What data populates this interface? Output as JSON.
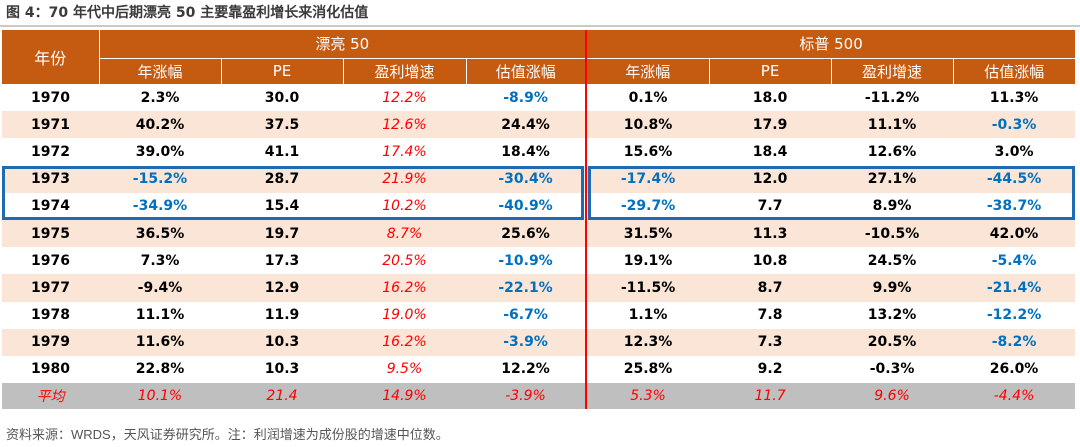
{
  "title": "图 4：70 年代中后期漂亮 50 主要靠盈利增长来消化估值",
  "source": "资料来源：WRDS，天风证券研究所。注：利润增速为成份股的增速中位数。",
  "header": {
    "year": "年份",
    "group_left": "漂亮 50",
    "group_right": "标普 500",
    "columns": [
      "年涨幅",
      "PE",
      "盈利增速",
      "估值涨幅",
      "年涨幅",
      "PE",
      "盈利增速",
      "估值涨幅"
    ]
  },
  "colors": {
    "header_bg": "#c55a11",
    "stripe": "#fbe5d6",
    "negative": "#0070c0",
    "earnings": "#ff0000",
    "highlight_box": "#1f6bb3",
    "average_bg": "#bfbfbf"
  },
  "rows": [
    {
      "year": "1970",
      "cells": [
        "2.3%",
        "30.0",
        "12.2%",
        "-8.9%",
        "0.1%",
        "18.0",
        "-11.2%",
        "11.3%"
      ]
    },
    {
      "year": "1971",
      "cells": [
        "40.2%",
        "37.5",
        "12.6%",
        "24.4%",
        "10.8%",
        "17.9",
        "11.1%",
        "-0.3%"
      ]
    },
    {
      "year": "1972",
      "cells": [
        "39.0%",
        "41.1",
        "17.4%",
        "18.4%",
        "15.6%",
        "18.4",
        "12.6%",
        "3.0%"
      ]
    },
    {
      "year": "1973",
      "cells": [
        "-15.2%",
        "28.7",
        "21.9%",
        "-30.4%",
        "-17.4%",
        "12.0",
        "27.1%",
        "-44.5%"
      ]
    },
    {
      "year": "1974",
      "cells": [
        "-34.9%",
        "15.4",
        "10.2%",
        "-40.9%",
        "-29.7%",
        "7.7",
        "8.9%",
        "-38.7%"
      ]
    },
    {
      "year": "1975",
      "cells": [
        "36.5%",
        "19.7",
        "8.7%",
        "25.6%",
        "31.5%",
        "11.3",
        "-10.5%",
        "42.0%"
      ]
    },
    {
      "year": "1976",
      "cells": [
        "7.3%",
        "17.3",
        "20.5%",
        "-10.9%",
        "19.1%",
        "10.8",
        "24.5%",
        "-5.4%"
      ]
    },
    {
      "year": "1977",
      "cells": [
        "-9.4%",
        "12.9",
        "16.2%",
        "-22.1%",
        "-11.5%",
        "8.7",
        "9.9%",
        "-21.4%"
      ]
    },
    {
      "year": "1978",
      "cells": [
        "11.1%",
        "11.9",
        "19.0%",
        "-6.7%",
        "1.1%",
        "7.8",
        "13.2%",
        "-12.2%"
      ]
    },
    {
      "year": "1979",
      "cells": [
        "11.6%",
        "10.3",
        "16.2%",
        "-3.9%",
        "12.3%",
        "7.3",
        "20.5%",
        "-8.2%"
      ]
    },
    {
      "year": "1980",
      "cells": [
        "22.8%",
        "10.3",
        "9.5%",
        "12.2%",
        "25.8%",
        "9.2",
        "-0.3%",
        "26.0%"
      ]
    }
  ],
  "average": {
    "year": "平均",
    "cells": [
      "10.1%",
      "21.4",
      "14.9%",
      "-3.9%",
      "5.3%",
      "11.7",
      "9.6%",
      "-4.4%"
    ]
  },
  "blue_cells": [
    [
      3,
      0
    ],
    [
      3,
      3
    ],
    [
      3,
      4
    ],
    [
      3,
      7
    ],
    [
      4,
      0
    ],
    [
      4,
      3
    ],
    [
      4,
      4
    ],
    [
      4,
      7
    ],
    [
      0,
      3
    ],
    [
      1,
      7
    ],
    [
      6,
      3
    ],
    [
      6,
      7
    ],
    [
      7,
      3
    ],
    [
      7,
      7
    ],
    [
      8,
      3
    ],
    [
      8,
      7
    ],
    [
      9,
      3
    ],
    [
      9,
      7
    ]
  ],
  "highlighted_years": [
    "1973",
    "1974"
  ]
}
